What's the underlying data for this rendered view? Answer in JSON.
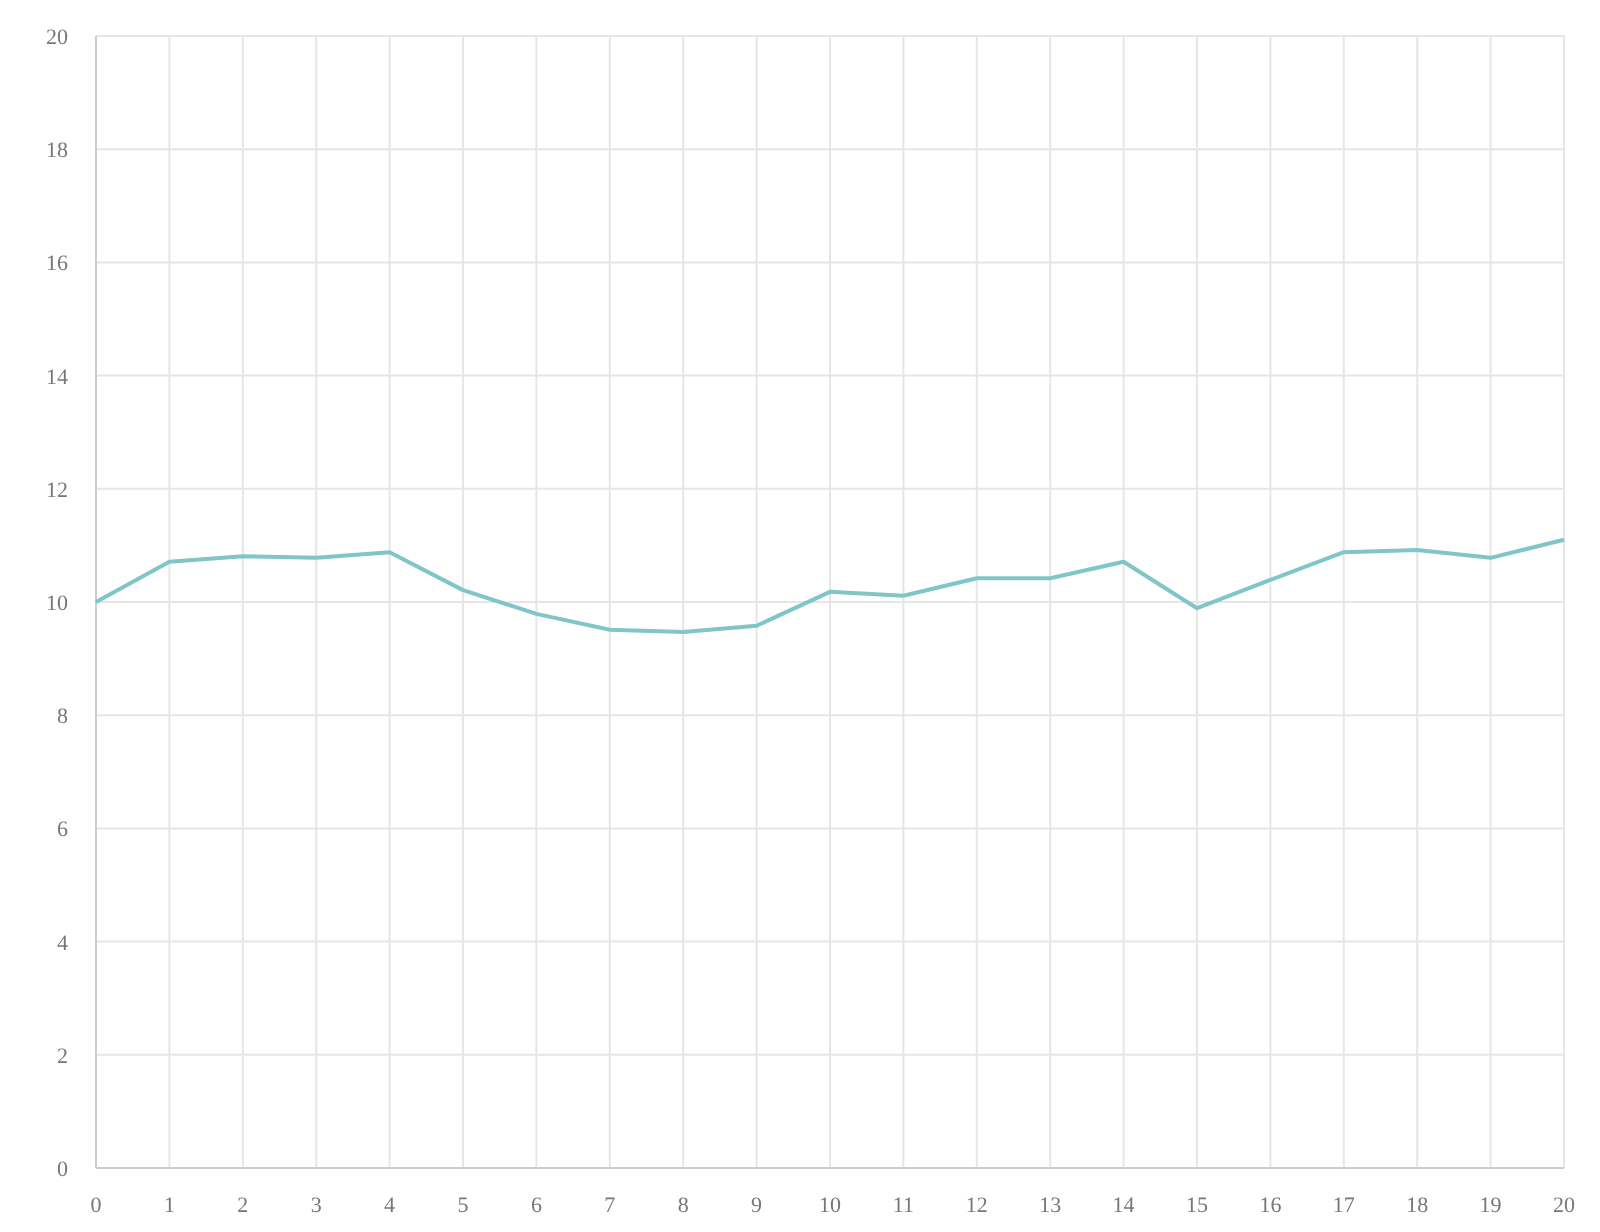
{
  "chart_data": {
    "type": "line",
    "x": [
      0,
      1,
      2,
      3,
      4,
      5,
      6,
      7,
      8,
      9,
      10,
      11,
      12,
      13,
      14,
      15,
      16,
      17,
      18,
      19,
      20
    ],
    "series": [
      {
        "color": "#80c5c8",
        "values": [
          10.0,
          10.71,
          10.81,
          10.78,
          10.88,
          10.21,
          9.79,
          9.51,
          9.47,
          9.58,
          10.18,
          10.11,
          10.42,
          10.42,
          10.71,
          9.89,
          10.39,
          10.88,
          10.92,
          10.78,
          11.1
        ]
      }
    ],
    "xlim": [
      0,
      20
    ],
    "xticks": [
      0,
      1,
      2,
      3,
      4,
      5,
      6,
      7,
      8,
      9,
      10,
      11,
      12,
      13,
      14,
      15,
      16,
      17,
      18,
      19,
      20
    ],
    "ylim": [
      0,
      20
    ],
    "yticks": [
      0,
      2,
      4,
      6,
      8,
      10,
      12,
      14,
      16,
      18,
      20
    ],
    "grid": true,
    "marker": "none",
    "line_style": "solid"
  }
}
